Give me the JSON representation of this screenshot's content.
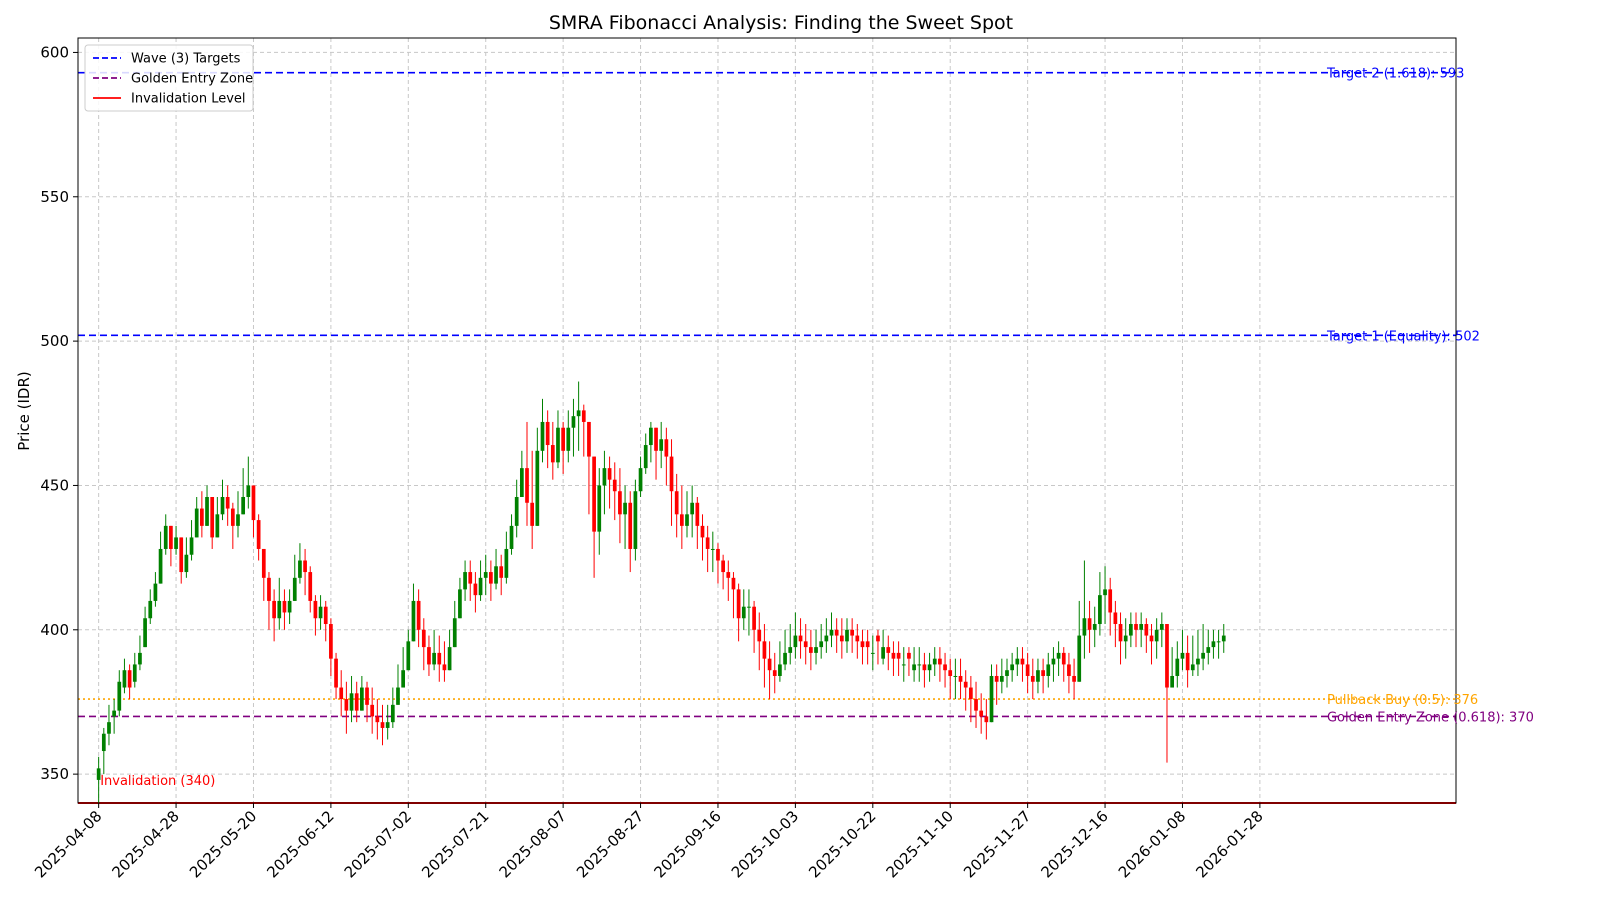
{
  "chart_data": {
    "type": "candlestick",
    "title": "SMRA Fibonacci Analysis: Finding the Sweet Spot",
    "ylabel": "Price (IDR)",
    "xlabel": "",
    "ylim": [
      340,
      605
    ],
    "yticks": [
      350,
      400,
      450,
      500,
      550,
      600
    ],
    "grid": true,
    "legend_position": "top-left",
    "x_tick_labels": [
      "2025-04-08",
      "2025-04-28",
      "2025-05-20",
      "2025-06-12",
      "2025-07-02",
      "2025-07-21",
      "2025-08-07",
      "2025-08-27",
      "2025-09-16",
      "2025-10-03",
      "2025-10-22",
      "2025-11-10",
      "2025-11-27",
      "2025-12-16",
      "2026-01-08",
      "2026-01-28"
    ],
    "x_tick_positions": [
      0,
      15,
      30,
      45,
      60,
      75,
      90,
      105,
      120,
      135,
      150,
      165,
      180,
      195,
      210,
      225
    ],
    "up_color": "#008000",
    "down_color": "#ff0000",
    "legend": [
      {
        "label": "Wave (3) Targets",
        "color": "#0000ff",
        "style": "dashed"
      },
      {
        "label": "Golden Entry Zone",
        "color": "#800080",
        "style": "dashed"
      },
      {
        "label": "Invalidation Level",
        "color": "#ff0000",
        "style": "solid"
      }
    ],
    "levels": [
      {
        "name": "Target 2",
        "value": 593,
        "color": "#0000ff",
        "style": "dashed",
        "label": "Target 2 (1.618): 593"
      },
      {
        "name": "Target 1",
        "value": 502,
        "color": "#0000ff",
        "style": "dashed",
        "label": "Target 1 (Equality): 502"
      },
      {
        "name": "Pullback Buy",
        "value": 376,
        "color": "#ffa500",
        "style": "dotted",
        "label": "Pullback Buy (0.5): 376"
      },
      {
        "name": "Golden Entry Zone",
        "value": 370,
        "color": "#800080",
        "style": "dashed",
        "label": "Golden Entry Zone (0.618): 370"
      },
      {
        "name": "Invalidation",
        "value": 340,
        "color": "#ff0000",
        "style": "solid",
        "label": "Invalidation (340)"
      }
    ],
    "close": [
      352,
      364,
      368,
      372,
      382,
      386,
      380,
      388,
      392,
      404,
      410,
      416,
      428,
      436,
      428,
      432,
      420,
      426,
      432,
      442,
      436,
      446,
      432,
      440,
      446,
      442,
      436,
      440,
      446,
      450,
      438,
      428,
      418,
      410,
      404,
      410,
      406,
      410,
      418,
      424,
      420,
      410,
      404,
      408,
      402,
      390,
      380,
      376,
      372,
      378,
      372,
      380,
      374,
      370,
      368,
      366,
      368,
      374,
      380,
      386,
      396,
      410,
      400,
      394,
      388,
      392,
      388,
      386,
      394,
      404,
      414,
      420,
      416,
      412,
      418,
      420,
      416,
      422,
      418,
      428,
      436,
      446,
      456,
      444,
      436,
      462,
      472,
      464,
      458,
      470,
      462,
      470,
      474,
      476,
      472,
      460,
      434,
      450,
      456,
      452,
      448,
      440,
      444,
      428,
      448,
      456,
      464,
      470,
      462,
      466,
      460,
      448,
      440,
      436,
      440,
      444,
      436,
      432,
      428,
      428,
      424,
      420,
      418,
      414,
      404,
      408,
      408,
      400,
      396,
      390,
      386,
      384,
      388,
      392,
      394,
      398,
      396,
      394,
      392,
      394,
      396,
      398,
      400,
      398,
      396,
      400,
      398,
      396,
      394,
      394,
      392,
      396,
      394,
      392,
      390,
      390,
      388,
      390,
      388,
      388,
      386,
      388,
      390,
      388,
      386,
      384,
      384,
      382,
      380,
      376,
      372,
      370,
      368,
      384,
      382,
      384,
      386,
      388,
      390,
      388,
      384,
      382,
      386,
      384,
      388,
      390,
      392,
      388,
      384,
      382,
      398,
      404,
      400,
      402,
      412,
      414,
      406,
      402,
      396,
      398,
      402,
      400,
      402,
      398,
      396,
      400,
      402,
      380,
      384,
      390,
      392,
      386,
      388,
      390,
      392,
      394,
      396,
      396,
      398
    ],
    "high": [
      356,
      366,
      374,
      376,
      386,
      390,
      388,
      392,
      398,
      408,
      414,
      420,
      434,
      440,
      434,
      436,
      430,
      432,
      438,
      446,
      448,
      450,
      446,
      446,
      452,
      450,
      444,
      448,
      456,
      460,
      450,
      440,
      428,
      420,
      414,
      418,
      414,
      414,
      426,
      430,
      428,
      422,
      412,
      412,
      410,
      404,
      392,
      386,
      382,
      384,
      382,
      384,
      382,
      380,
      376,
      374,
      374,
      380,
      388,
      394,
      400,
      416,
      414,
      404,
      398,
      400,
      398,
      396,
      400,
      410,
      418,
      424,
      424,
      420,
      424,
      426,
      424,
      428,
      426,
      434,
      440,
      452,
      462,
      472,
      462,
      470,
      480,
      476,
      472,
      476,
      472,
      476,
      480,
      486,
      478,
      472,
      458,
      456,
      462,
      460,
      458,
      456,
      450,
      448,
      452,
      460,
      468,
      472,
      470,
      472,
      470,
      466,
      454,
      450,
      448,
      450,
      446,
      440,
      436,
      434,
      430,
      426,
      424,
      420,
      416,
      414,
      414,
      410,
      406,
      402,
      396,
      392,
      396,
      400,
      402,
      406,
      404,
      402,
      400,
      400,
      402,
      404,
      406,
      404,
      404,
      404,
      404,
      402,
      400,
      400,
      398,
      400,
      400,
      398,
      396,
      396,
      394,
      394,
      394,
      394,
      392,
      392,
      394,
      394,
      392,
      390,
      390,
      390,
      386,
      384,
      382,
      378,
      376,
      388,
      388,
      390,
      390,
      392,
      394,
      394,
      392,
      390,
      390,
      390,
      392,
      394,
      396,
      394,
      392,
      390,
      410,
      424,
      410,
      408,
      420,
      422,
      418,
      410,
      406,
      404,
      406,
      406,
      406,
      404,
      402,
      404,
      406,
      400,
      394,
      396,
      400,
      398,
      398,
      400,
      402,
      400,
      400,
      400,
      402
    ],
    "low": [
      340,
      350,
      360,
      364,
      370,
      378,
      376,
      380,
      386,
      398,
      402,
      408,
      420,
      426,
      422,
      426,
      416,
      418,
      424,
      434,
      432,
      436,
      428,
      434,
      438,
      436,
      428,
      432,
      440,
      442,
      432,
      424,
      410,
      400,
      396,
      400,
      400,
      402,
      410,
      416,
      412,
      406,
      398,
      400,
      396,
      384,
      376,
      370,
      364,
      368,
      368,
      372,
      368,
      364,
      362,
      360,
      362,
      366,
      374,
      380,
      388,
      400,
      394,
      386,
      384,
      386,
      382,
      382,
      386,
      398,
      404,
      410,
      410,
      406,
      410,
      412,
      410,
      414,
      412,
      416,
      426,
      432,
      446,
      436,
      428,
      448,
      458,
      456,
      452,
      456,
      454,
      458,
      460,
      462,
      460,
      440,
      418,
      426,
      440,
      442,
      438,
      430,
      428,
      420,
      424,
      446,
      454,
      458,
      452,
      456,
      450,
      436,
      432,
      428,
      432,
      432,
      428,
      424,
      420,
      420,
      416,
      414,
      410,
      404,
      396,
      400,
      398,
      392,
      386,
      380,
      376,
      378,
      382,
      386,
      388,
      390,
      390,
      388,
      386,
      388,
      390,
      392,
      394,
      392,
      390,
      392,
      392,
      390,
      388,
      388,
      386,
      388,
      388,
      386,
      384,
      384,
      382,
      384,
      382,
      382,
      380,
      382,
      384,
      382,
      380,
      376,
      376,
      376,
      372,
      368,
      366,
      364,
      362,
      372,
      374,
      378,
      380,
      382,
      384,
      382,
      378,
      376,
      378,
      378,
      380,
      382,
      384,
      382,
      378,
      376,
      386,
      390,
      392,
      394,
      398,
      402,
      398,
      394,
      388,
      390,
      394,
      394,
      394,
      392,
      388,
      390,
      394,
      354,
      380,
      380,
      386,
      380,
      384,
      384,
      386,
      388,
      390,
      390,
      392
    ],
    "open_offset": [
      -4,
      -6,
      -4,
      -2,
      -10,
      -6,
      6,
      -6,
      -4,
      -10,
      -6,
      -6,
      -12,
      -8,
      8,
      -4,
      12,
      -6,
      -6,
      -10,
      6,
      -10,
      14,
      -8,
      -6,
      4,
      6,
      -4,
      -6,
      -4,
      12,
      10,
      10,
      8,
      6,
      -6,
      4,
      -4,
      -8,
      -6,
      4,
      10,
      6,
      -4,
      6,
      12,
      10,
      4,
      4,
      -6,
      6,
      -8,
      6,
      4,
      2,
      2,
      -2,
      -6,
      -6,
      -6,
      -10,
      -14,
      10,
      6,
      6,
      -4,
      4,
      2,
      -8,
      -10,
      -10,
      -6,
      4,
      4,
      -6,
      -2,
      4,
      -6,
      4,
      -10,
      -8,
      -10,
      -10,
      12,
      8,
      -26,
      -10,
      8,
      6,
      -12,
      8,
      -8,
      -4,
      -2,
      4,
      12,
      26,
      -16,
      -6,
      4,
      4,
      8,
      -4,
      16,
      -20,
      -8,
      -8,
      -6,
      8,
      -4,
      6,
      12,
      8,
      4,
      -4,
      -4,
      8,
      4,
      4,
      0,
      4,
      4,
      2,
      4,
      10,
      -4,
      0,
      8,
      4,
      6,
      4,
      2,
      -4,
      -4,
      -2,
      -4,
      2,
      2,
      2,
      -2,
      -2,
      -2,
      -2,
      2,
      2,
      -4,
      2,
      2,
      2,
      2,
      0,
      2,
      -4,
      2,
      2,
      2,
      0,
      2,
      -2,
      0,
      2,
      -2,
      -2,
      2,
      2,
      2,
      0,
      2,
      2,
      4,
      4,
      2,
      2,
      -16,
      2,
      -2,
      -2,
      -2,
      -2,
      2,
      4,
      2,
      -4,
      2,
      -4,
      -2,
      -2,
      4,
      4,
      2,
      -16,
      -6,
      4,
      -2,
      -10,
      -2,
      8,
      4,
      6,
      -2,
      -4,
      2,
      -2,
      4,
      2,
      -4,
      -2,
      22,
      -4,
      -6,
      -2,
      6,
      -2,
      -2,
      -2,
      -2,
      -2,
      0,
      -2
    ]
  }
}
